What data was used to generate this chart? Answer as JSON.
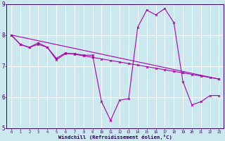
{
  "xlabel": "Windchill (Refroidissement éolien,°C)",
  "xlim": [
    -0.5,
    23.5
  ],
  "ylim": [
    5,
    9
  ],
  "xticks": [
    0,
    1,
    2,
    3,
    4,
    5,
    6,
    7,
    8,
    9,
    10,
    11,
    12,
    13,
    14,
    15,
    16,
    17,
    18,
    19,
    20,
    21,
    22,
    23
  ],
  "yticks": [
    5,
    6,
    7,
    8,
    9
  ],
  "bg_color": "#cce8ef",
  "line_color": "#aa00aa",
  "grid_color": "#ffffff",
  "line1_x": [
    0,
    1,
    2,
    3,
    4,
    5,
    6,
    7,
    8,
    9,
    10,
    11,
    12,
    13,
    14,
    15,
    16,
    17,
    18,
    19,
    20,
    21,
    22,
    23
  ],
  "line1_y": [
    8.0,
    7.7,
    7.6,
    7.7,
    7.6,
    7.2,
    7.4,
    7.4,
    7.35,
    7.35,
    5.85,
    5.25,
    5.9,
    5.95,
    8.25,
    8.8,
    8.65,
    8.85,
    8.4,
    6.5,
    5.75,
    5.85,
    6.05,
    6.05
  ],
  "line2_x": [
    0,
    1,
    2,
    3,
    4,
    5,
    6,
    7,
    8,
    9,
    10,
    11,
    12,
    13,
    14,
    15,
    16,
    17,
    18,
    19,
    20,
    21,
    22,
    23
  ],
  "line2_y": [
    8.0,
    7.7,
    7.6,
    7.75,
    7.6,
    7.25,
    7.42,
    7.38,
    7.33,
    7.28,
    7.23,
    7.18,
    7.13,
    7.08,
    7.03,
    6.98,
    6.93,
    6.88,
    6.83,
    6.78,
    6.73,
    6.68,
    6.63,
    6.58
  ],
  "line3_x": [
    0,
    23
  ],
  "line3_y": [
    8.0,
    6.58
  ]
}
